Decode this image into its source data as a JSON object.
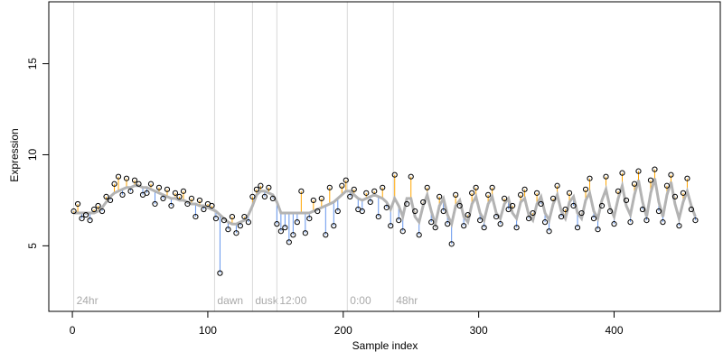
{
  "chart_data": {
    "type": "scatter",
    "xlabel": "Sample index",
    "ylabel": "Expression",
    "xlim": [
      -17.4,
      478.4
    ],
    "ylim": [
      1.4,
      18.4
    ],
    "xticks": [
      0,
      100,
      200,
      300,
      400
    ],
    "yticks": [
      5,
      10,
      15
    ],
    "x": [
      1,
      4,
      7,
      10,
      13,
      16,
      19,
      22,
      25,
      28,
      31,
      34,
      37,
      40,
      43,
      46,
      49,
      52,
      55,
      58,
      61,
      64,
      67,
      70,
      73,
      76,
      79,
      82,
      85,
      88,
      91,
      94,
      97,
      100,
      103,
      106,
      109,
      112,
      115,
      118,
      121,
      124,
      127,
      130,
      133,
      136,
      139,
      142,
      145,
      148,
      151,
      154,
      157,
      160,
      163,
      166,
      169,
      172,
      175,
      178,
      181,
      184,
      187,
      190,
      193,
      196,
      199,
      202,
      205,
      208,
      211,
      214,
      217,
      220,
      223,
      226,
      229,
      232,
      235,
      238,
      241,
      244,
      247,
      250,
      253,
      256,
      259,
      262,
      265,
      268,
      271,
      274,
      277,
      280,
      283,
      286,
      289,
      292,
      295,
      298,
      301,
      304,
      307,
      310,
      313,
      316,
      319,
      322,
      325,
      328,
      331,
      334,
      337,
      340,
      343,
      346,
      349,
      352,
      355,
      358,
      361,
      364,
      367,
      370,
      373,
      376,
      379,
      382,
      385,
      388,
      391,
      394,
      397,
      400,
      403,
      406,
      409,
      412,
      415,
      418,
      421,
      424,
      427,
      430,
      433,
      436,
      439,
      442,
      445,
      448,
      451,
      454,
      457,
      460
    ],
    "series": [
      {
        "color": "#000000",
        "values": [
          6.9,
          7.3,
          6.5,
          6.7,
          6.4,
          7.0,
          7.2,
          6.9,
          7.7,
          7.5,
          8.4,
          8.8,
          7.8,
          8.7,
          8.0,
          8.6,
          8.4,
          7.8,
          7.9,
          8.4,
          7.3,
          8.2,
          7.6,
          8.1,
          7.2,
          7.9,
          7.7,
          8.0,
          7.3,
          7.6,
          6.6,
          7.5,
          7.0,
          7.3,
          7.2,
          6.5,
          3.5,
          6.4,
          5.9,
          6.6,
          5.7,
          6.1,
          6.6,
          6.3,
          7.7,
          8.1,
          8.3,
          7.7,
          8.2,
          7.6,
          6.2,
          5.8,
          6.0,
          5.2,
          5.6,
          6.3,
          8.0,
          5.7,
          6.5,
          7.5,
          6.9,
          7.6,
          5.6,
          8.2,
          6.1,
          6.9,
          8.3,
          8.6,
          7.7,
          8.1,
          7.0,
          6.9,
          7.9,
          7.4,
          8.0,
          6.6,
          8.2,
          7.1,
          6.1,
          8.9,
          6.4,
          5.8,
          7.3,
          8.8,
          6.9,
          5.6,
          7.4,
          8.2,
          6.3,
          6.0,
          7.7,
          6.9,
          6.2,
          5.1,
          7.8,
          7.2,
          6.1,
          6.7,
          7.9,
          8.2,
          6.4,
          6.0,
          7.8,
          8.2,
          6.6,
          6.2,
          7.6,
          7.0,
          7.2,
          6.0,
          7.8,
          8.1,
          6.5,
          6.8,
          7.9,
          7.3,
          6.3,
          5.8,
          7.6,
          8.3,
          6.6,
          7.0,
          7.9,
          7.2,
          6.0,
          6.8,
          8.1,
          8.7,
          6.5,
          5.9,
          7.2,
          8.8,
          6.9,
          6.2,
          8.0,
          9.0,
          7.5,
          6.3,
          8.4,
          9.1,
          7.0,
          6.4,
          8.6,
          9.2,
          6.9,
          6.3,
          8.3,
          8.9,
          7.7,
          6.1,
          7.9,
          8.7,
          7.0,
          6.4
        ]
      },
      {
        "color": "#b3b3b3",
        "values": [
          6.8,
          6.8,
          6.8,
          6.8,
          6.8,
          6.8,
          6.9,
          7.1,
          7.4,
          7.7,
          7.9,
          8.0,
          8.1,
          8.2,
          8.2,
          8.3,
          8.3,
          8.2,
          8.2,
          8.1,
          8.0,
          7.9,
          7.8,
          7.7,
          7.6,
          7.6,
          7.5,
          7.5,
          7.4,
          7.3,
          7.3,
          7.2,
          7.2,
          7.1,
          7.0,
          6.9,
          6.7,
          6.5,
          6.3,
          6.2,
          6.2,
          6.3,
          6.4,
          6.7,
          7.2,
          7.8,
          8.0,
          8.0,
          7.9,
          7.8,
          7.4,
          6.8,
          6.8,
          6.8,
          6.8,
          6.8,
          6.8,
          6.8,
          6.8,
          6.9,
          7.0,
          7.1,
          7.2,
          7.3,
          7.4,
          7.6,
          7.8,
          8.0,
          8.0,
          7.8,
          7.6,
          7.5,
          7.6,
          7.7,
          7.8,
          7.7,
          7.6,
          7.4,
          7.0,
          7.6,
          7.2,
          6.6,
          7.6,
          7.6,
          6.6,
          6.3,
          7.2,
          7.8,
          6.9,
          6.2,
          7.2,
          7.6,
          6.7,
          6.2,
          7.2,
          7.5,
          6.6,
          6.3,
          7.3,
          7.7,
          6.8,
          6.4,
          7.3,
          7.7,
          6.8,
          6.5,
          7.3,
          7.6,
          6.8,
          6.5,
          7.4,
          7.6,
          6.7,
          6.4,
          7.3,
          7.7,
          6.8,
          6.4,
          7.3,
          7.8,
          6.9,
          6.5,
          7.4,
          7.7,
          6.8,
          6.5,
          7.5,
          7.9,
          6.9,
          6.5,
          7.5,
          8.1,
          7.1,
          6.6,
          7.6,
          8.3,
          7.2,
          6.7,
          7.8,
          8.6,
          7.4,
          6.6,
          7.9,
          8.7,
          7.4,
          6.6,
          7.8,
          8.5,
          7.3,
          6.5,
          7.4,
          8.0,
          7.2,
          6.6
        ]
      }
    ],
    "residual_colors": {
      "above": "#ffa500",
      "below": "#6495ed"
    },
    "event_color": "#d9d9d9",
    "events": [
      {
        "x": 1,
        "label": "24hr"
      },
      {
        "x": 105,
        "label": "dawn"
      },
      {
        "x": 133,
        "label": "dusk"
      },
      {
        "x": 151,
        "label": "12:00"
      },
      {
        "x": 203,
        "label": "0:00"
      },
      {
        "x": 237,
        "label": "48hr"
      }
    ]
  }
}
